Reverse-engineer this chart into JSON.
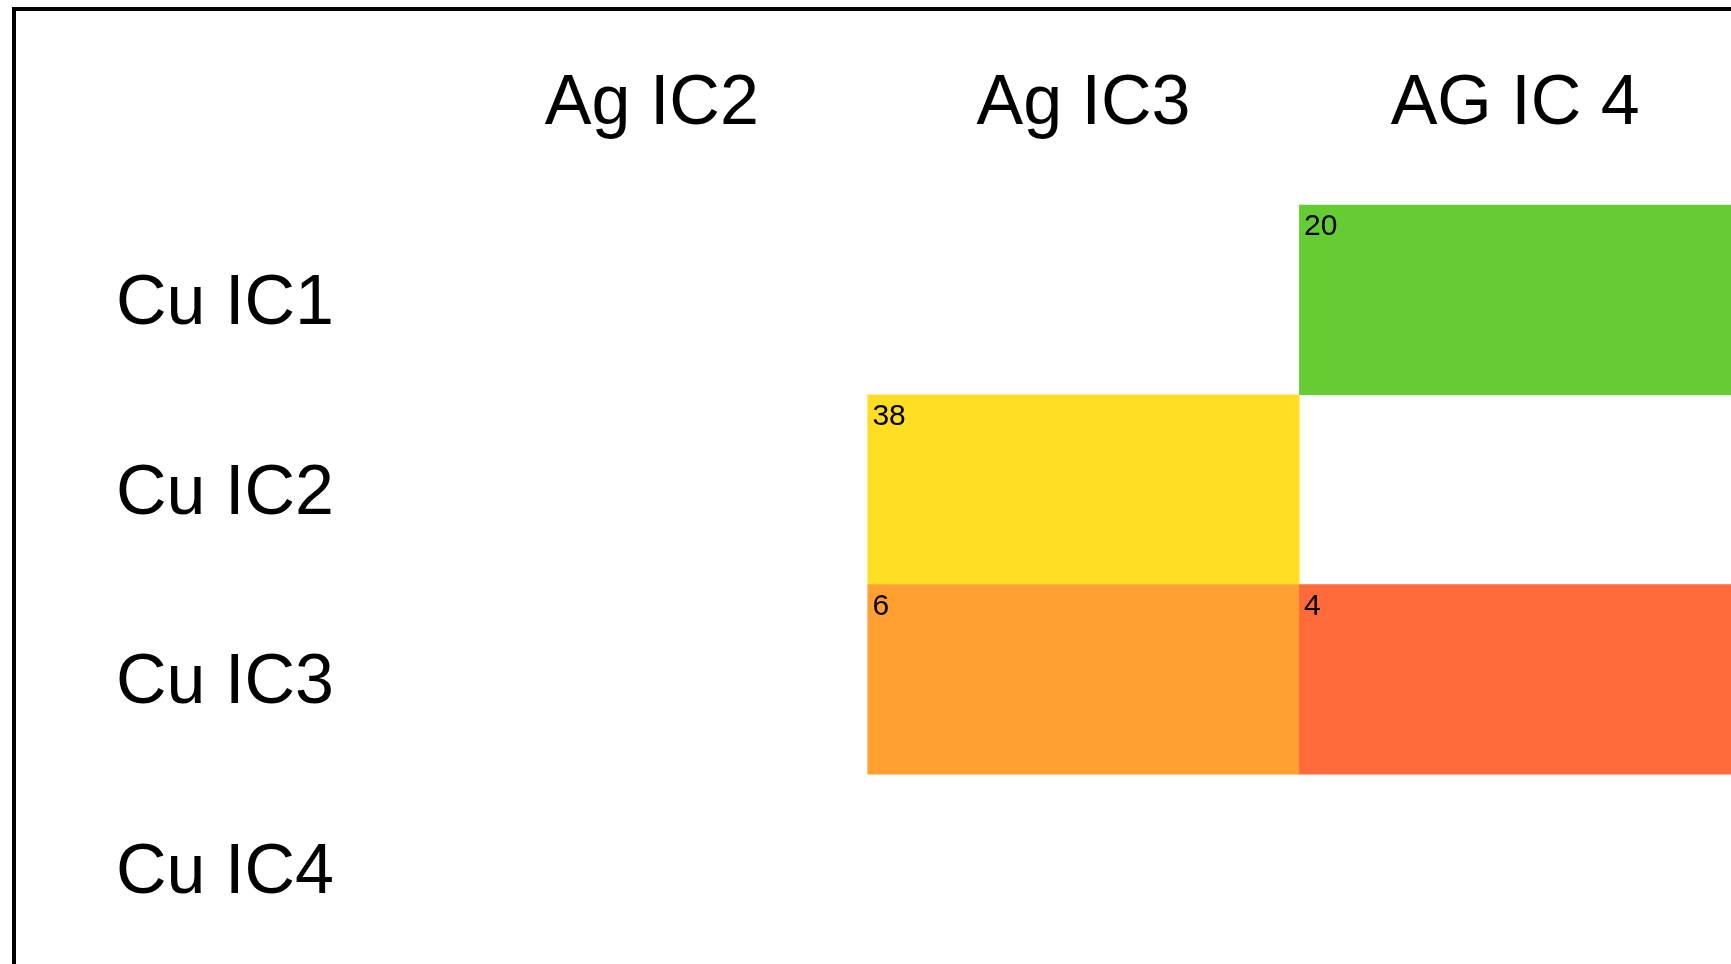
{
  "chart_data": {
    "type": "heatmap",
    "categories": [
      "Ag IC2",
      "Ag IC3",
      "AG IC 4"
    ],
    "y_categories": [
      "Cu IC1",
      "Cu IC2",
      "Cu IC3",
      "Cu IC4"
    ],
    "cells": [
      [
        null,
        null,
        20
      ],
      [
        null,
        38,
        null
      ],
      [
        null,
        6,
        4
      ],
      [
        null,
        null,
        null
      ]
    ],
    "colors": [
      [
        null,
        null,
        "#66cc33"
      ],
      [
        null,
        "#ffdd22",
        null
      ],
      [
        null,
        "#ffa030",
        "#ff6a3a"
      ],
      [
        null,
        null,
        null
      ]
    ],
    "data_labels": true
  }
}
